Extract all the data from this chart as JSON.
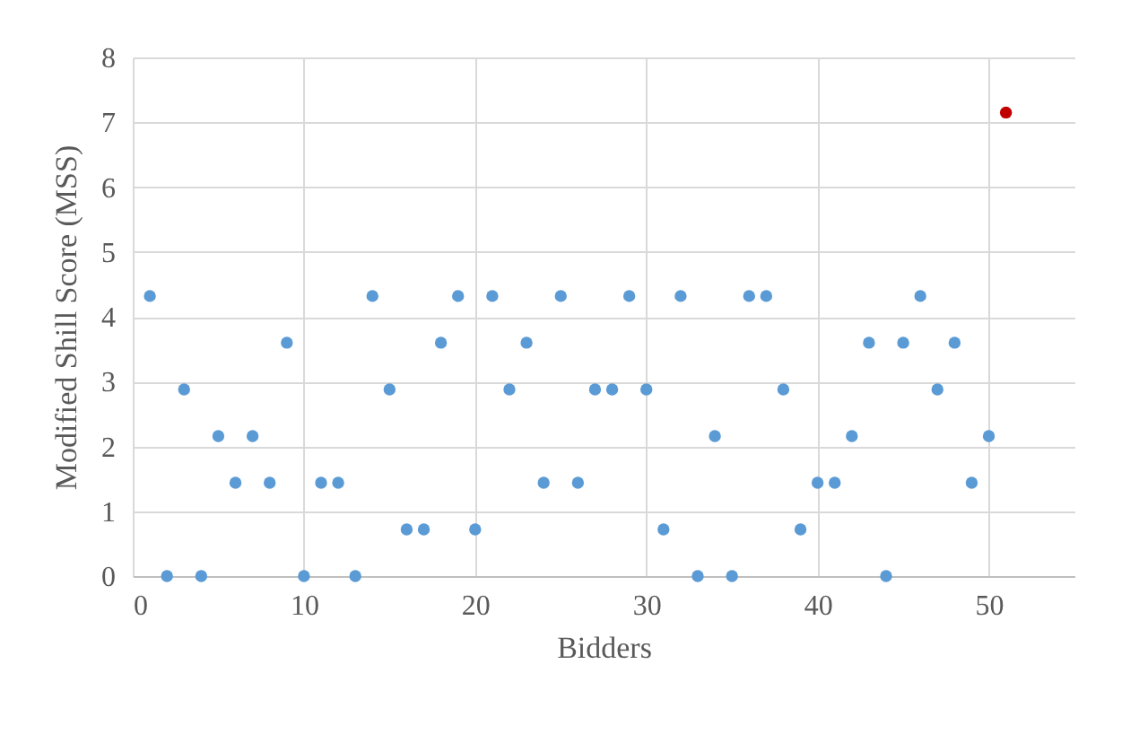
{
  "chart_data": {
    "type": "scatter",
    "xlabel": "Bidders",
    "ylabel": "Modified Shill Score (MSS)",
    "xlim": [
      0,
      55
    ],
    "xticks": [
      0,
      10,
      20,
      30,
      40,
      50
    ],
    "ylim": [
      0,
      8
    ],
    "yticks": [
      0,
      1,
      2,
      3,
      4,
      5,
      6,
      7,
      8
    ],
    "grid": true,
    "marker": "circle",
    "series": [
      {
        "color": "#5b9bd5",
        "x": [
          1,
          2,
          3,
          4,
          5,
          6,
          7,
          8,
          9,
          10,
          11,
          12,
          13,
          14,
          15,
          16,
          17,
          18,
          19,
          20,
          21,
          22,
          23,
          24,
          25,
          26,
          27,
          28,
          29,
          30,
          31,
          32,
          33,
          34,
          35,
          36,
          37,
          38,
          39,
          40,
          41,
          42,
          43,
          44,
          45,
          46,
          47,
          48,
          49,
          50
        ],
        "values": [
          4.32,
          0,
          2.88,
          0,
          2.16,
          1.44,
          2.16,
          1.44,
          3.6,
          0,
          1.44,
          1.44,
          0,
          4.32,
          2.88,
          0.72,
          0.72,
          3.6,
          4.32,
          0.72,
          4.32,
          2.88,
          3.6,
          1.44,
          4.32,
          1.44,
          2.88,
          2.88,
          4.32,
          2.88,
          0.72,
          4.32,
          0,
          2.16,
          0,
          4.32,
          4.32,
          2.88,
          0.72,
          1.44,
          1.44,
          2.16,
          3.6,
          0,
          3.6,
          4.32,
          2.88,
          3.6,
          1.44,
          2.16
        ]
      },
      {
        "color": "#c00000",
        "x": [
          51
        ],
        "values": [
          7.15
        ]
      }
    ]
  }
}
